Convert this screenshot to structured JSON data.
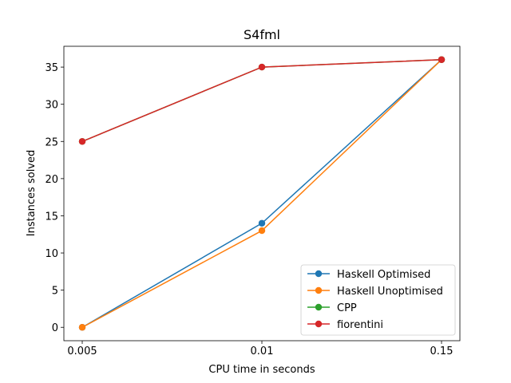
{
  "chart_data": {
    "type": "line",
    "title": "S4fml",
    "xlabel": "CPU time in seconds",
    "ylabel": "Instances solved",
    "categories": [
      "0.005",
      "0.01",
      "0.15"
    ],
    "ylim": [
      -1.8,
      37.8
    ],
    "yticks": [
      0,
      5,
      10,
      15,
      20,
      25,
      30,
      35
    ],
    "grid": false,
    "legend_position": "lower-right",
    "series": [
      {
        "name": "Haskell Optimised",
        "color": "#1f77b4",
        "values": [
          0,
          14,
          36
        ]
      },
      {
        "name": "Haskell Unoptimised",
        "color": "#ff7f0e",
        "values": [
          0,
          13,
          36
        ]
      },
      {
        "name": "CPP",
        "color": "#2ca02c",
        "values": [
          25,
          35,
          36
        ]
      },
      {
        "name": "fiorentini",
        "color": "#d62728",
        "values": [
          25,
          35,
          36
        ]
      }
    ]
  }
}
